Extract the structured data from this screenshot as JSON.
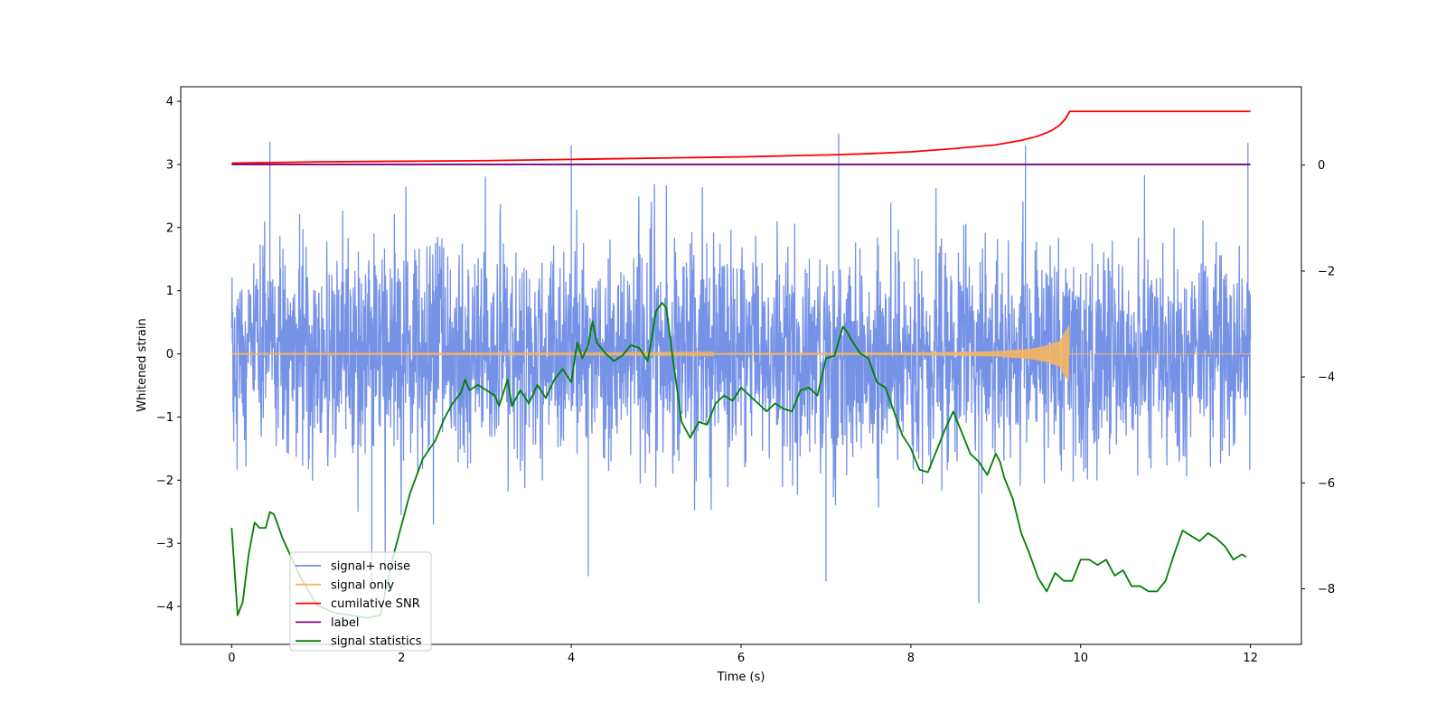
{
  "chart_data": {
    "type": "line",
    "title": "",
    "xlabel": "Time (s)",
    "ylabel": "Whitened strain",
    "y2label": "",
    "xlim": [
      -0.6,
      12.6
    ],
    "ylim": [
      -4.6,
      4.23
    ],
    "y2lim": [
      -9.05,
      1.48
    ],
    "xticks": [
      0,
      2,
      4,
      6,
      8,
      10,
      12
    ],
    "xtick_labels": [
      "0",
      "2",
      "4",
      "6",
      "8",
      "10",
      "12"
    ],
    "yticks": [
      -4,
      -3,
      -2,
      -1,
      0,
      1,
      2,
      3,
      4
    ],
    "ytick_labels": [
      "−4",
      "−3",
      "−2",
      "−1",
      "0",
      "1",
      "2",
      "3",
      "4"
    ],
    "y2ticks": [
      -8,
      -6,
      -4,
      -2,
      0
    ],
    "y2tick_labels": [
      "−8",
      "−6",
      "−4",
      "−2",
      "0"
    ],
    "grid": false,
    "legend_position": "lower-left",
    "legend": [
      {
        "label": "signal+ noise",
        "color": "#6f8ce6"
      },
      {
        "label": "signal only",
        "color": "#f5b662"
      },
      {
        "label": "cumilative SNR",
        "color": "#ff0000"
      },
      {
        "label": "label",
        "color": "#800080"
      },
      {
        "label": "signal statistics",
        "color": "#008000"
      }
    ],
    "series": [
      {
        "name": "signal+ noise",
        "axis": "left",
        "color": "#6f8ce6",
        "x_range": [
          0,
          12
        ],
        "noise_sigma": 0.85,
        "approx_range": [
          -3.95,
          3.49
        ],
        "peaks": [
          {
            "x": 0.45,
            "y": 3.36
          },
          {
            "x": 4.0,
            "y": 3.3
          },
          {
            "x": 7.15,
            "y": 3.49
          },
          {
            "x": 9.35,
            "y": 3.3
          },
          {
            "x": 11.97,
            "y": 3.34
          },
          {
            "x": 8.8,
            "y": -3.95
          },
          {
            "x": 1.65,
            "y": -3.78
          },
          {
            "x": 7.0,
            "y": -3.6
          },
          {
            "x": 4.2,
            "y": -3.52
          }
        ]
      },
      {
        "name": "signal only",
        "axis": "left",
        "color": "#f5b662",
        "description_points": {
          "x": [
            0,
            4,
            8,
            9.0,
            9.4,
            9.6,
            9.75,
            9.86,
            9.87,
            12
          ],
          "amplitude": [
            0.005,
            0.008,
            0.02,
            0.04,
            0.08,
            0.13,
            0.2,
            0.45,
            0.0,
            0.0
          ]
        }
      },
      {
        "name": "cumilative SNR",
        "axis": "left",
        "color": "#ff0000",
        "x": [
          0,
          1,
          2,
          3,
          4,
          5,
          6,
          7,
          7.5,
          8,
          8.5,
          9.0,
          9.3,
          9.5,
          9.65,
          9.75,
          9.82,
          9.87,
          12
        ],
        "y": [
          3.02,
          3.04,
          3.05,
          3.06,
          3.08,
          3.1,
          3.12,
          3.15,
          3.17,
          3.2,
          3.25,
          3.31,
          3.38,
          3.45,
          3.53,
          3.62,
          3.72,
          3.84,
          3.84
        ]
      },
      {
        "name": "label",
        "axis": "left",
        "color": "#800080",
        "x": [
          0,
          12
        ],
        "y": [
          3.0,
          3.0
        ]
      },
      {
        "name": "signal statistics",
        "axis": "right",
        "color": "#008000",
        "x": [
          0,
          0.07,
          0.13,
          0.2,
          0.27,
          0.33,
          0.4,
          0.45,
          0.5,
          0.6,
          0.8,
          1.0,
          1.2,
          1.4,
          1.6,
          1.75,
          1.9,
          2.1,
          2.25,
          2.4,
          2.5,
          2.6,
          2.7,
          2.75,
          2.8,
          2.9,
          3.0,
          3.1,
          3.15,
          3.25,
          3.3,
          3.4,
          3.5,
          3.6,
          3.7,
          3.8,
          3.9,
          4.0,
          4.07,
          4.13,
          4.2,
          4.25,
          4.3,
          4.4,
          4.5,
          4.6,
          4.7,
          4.8,
          4.9,
          4.95,
          5.0,
          5.07,
          5.12,
          5.2,
          5.3,
          5.4,
          5.5,
          5.6,
          5.7,
          5.8,
          5.9,
          6.0,
          6.1,
          6.2,
          6.3,
          6.4,
          6.5,
          6.6,
          6.7,
          6.8,
          6.9,
          7.0,
          7.1,
          7.2,
          7.25,
          7.3,
          7.4,
          7.5,
          7.6,
          7.7,
          7.8,
          7.9,
          8.0,
          8.1,
          8.2,
          8.3,
          8.4,
          8.5,
          8.6,
          8.7,
          8.8,
          8.9,
          9.0,
          9.05,
          9.1,
          9.2,
          9.3,
          9.4,
          9.5,
          9.6,
          9.7,
          9.8,
          9.9,
          10.0,
          10.1,
          10.2,
          10.3,
          10.4,
          10.5,
          10.6,
          10.7,
          10.8,
          10.9,
          11.0,
          11.1,
          11.2,
          11.3,
          11.4,
          11.5,
          11.6,
          11.7,
          11.8,
          11.9,
          11.95
        ],
        "y": [
          -6.85,
          -8.5,
          -8.25,
          -7.35,
          -6.75,
          -6.85,
          -6.85,
          -6.55,
          -6.6,
          -7.05,
          -7.75,
          -8.3,
          -8.45,
          -8.5,
          -8.55,
          -8.5,
          -7.4,
          -6.2,
          -5.55,
          -5.2,
          -4.8,
          -4.5,
          -4.3,
          -4.05,
          -4.25,
          -4.15,
          -4.25,
          -4.35,
          -4.55,
          -4.05,
          -4.55,
          -4.25,
          -4.5,
          -4.15,
          -4.4,
          -4.05,
          -3.85,
          -4.1,
          -3.35,
          -3.65,
          -3.4,
          -2.95,
          -3.35,
          -3.55,
          -3.7,
          -3.6,
          -3.4,
          -3.45,
          -3.7,
          -3.25,
          -2.75,
          -2.6,
          -2.7,
          -3.7,
          -4.85,
          -5.15,
          -4.85,
          -4.9,
          -4.5,
          -4.35,
          -4.45,
          -4.2,
          -4.35,
          -4.5,
          -4.65,
          -4.5,
          -4.6,
          -4.65,
          -4.25,
          -4.2,
          -4.35,
          -3.65,
          -3.6,
          -3.05,
          -3.15,
          -3.3,
          -3.55,
          -3.65,
          -4.1,
          -4.2,
          -4.65,
          -5.1,
          -5.35,
          -5.75,
          -5.8,
          -5.4,
          -5.0,
          -4.65,
          -5.05,
          -5.45,
          -5.6,
          -5.85,
          -5.45,
          -5.6,
          -5.9,
          -6.3,
          -6.95,
          -7.35,
          -7.8,
          -8.05,
          -7.7,
          -7.85,
          -7.85,
          -7.45,
          -7.45,
          -7.55,
          -7.45,
          -7.75,
          -7.65,
          -7.95,
          -7.95,
          -8.05,
          -8.05,
          -7.85,
          -7.35,
          -6.9,
          -7.0,
          -7.1,
          -6.95,
          -7.05,
          -7.2,
          -7.45,
          -7.35,
          -7.4
        ]
      }
    ]
  }
}
